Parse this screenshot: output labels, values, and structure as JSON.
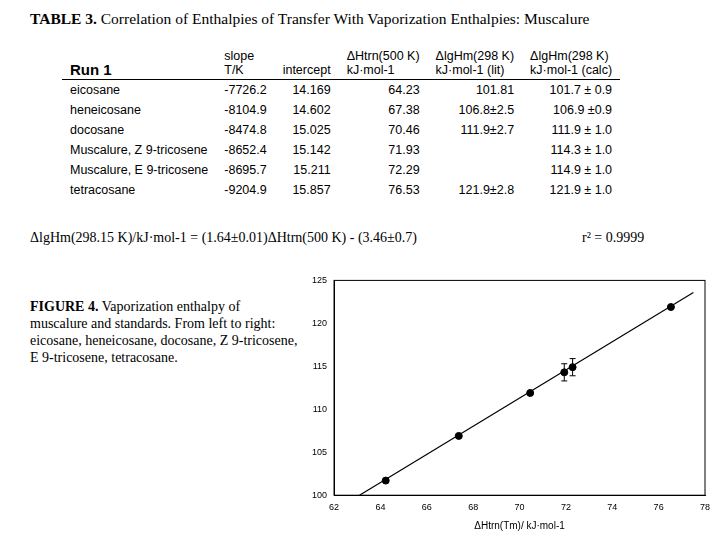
{
  "title": {
    "label": "TABLE 3.",
    "text": "Correlation of Enthalpies of Transfer With Vaporization Enthalpies: Muscalure"
  },
  "table": {
    "header": [
      [
        "Run 1"
      ],
      [
        "slope",
        "T/K"
      ],
      [
        "intercept"
      ],
      [
        "ΔHtrn(500 K)",
        "kJ·mol-1"
      ],
      [
        "ΔlgHm(298 K)",
        "kJ·mol-1 (lit)"
      ],
      [
        "ΔlgHm(298 K)",
        "kJ·mol-1 (calc)"
      ]
    ],
    "rows": [
      [
        "eicosane",
        "-7726.2",
        "14.169",
        "64.23",
        "101.81",
        "101.7 ± 0.9"
      ],
      [
        "heneicosane",
        "-8104.9",
        "14.602",
        "67.38",
        "106.8±2.5",
        "106.9 ±0.9"
      ],
      [
        "docosane",
        "-8474.8",
        "15.025",
        "70.46",
        "111.9±2.7",
        "111.9 ± 1.0"
      ],
      [
        "Muscalure, Z 9-tricosene",
        "-8652.4",
        "15.142",
        "71.93",
        null,
        "114.3 ± 1.0"
      ],
      [
        "Muscalure, E 9-tricosene",
        "-8695.7",
        "15.211",
        "72.29",
        null,
        "114.9 ± 1.0"
      ],
      [
        "tetracosane",
        "-9204.9",
        "15.857",
        "76.53",
        "121.9±2.8",
        "121.9 ± 1.0"
      ]
    ]
  },
  "equation": "ΔlgHm(298.15 K)/kJ·mol-1 = (1.64±0.01)ΔHtrn(500 K) - (3.46±0.7)",
  "r2": "r² = 0.9999",
  "figure_caption": {
    "label": "FIGURE 4.",
    "text": "Vaporization enthalpy of muscalure and standards. From left to right: eicosane, heneicosane, docosane, Z 9-tricosene, E 9-tricosene, tetracosane."
  },
  "chart_data": {
    "type": "scatter",
    "xlabel": "ΔHtrn(Tm)/ kJ·mol-1",
    "xlim": [
      62,
      78
    ],
    "xticks": [
      62,
      64,
      66,
      68,
      70,
      72,
      74,
      76,
      78
    ],
    "ylim": [
      100,
      125
    ],
    "yticks": [
      100,
      105,
      110,
      115,
      120,
      125
    ],
    "grid": false,
    "series": [
      {
        "type": "scatter",
        "marker": "circle",
        "color": "#000000",
        "x": [
          64.23,
          67.38,
          70.46,
          71.93,
          72.29,
          76.53
        ],
        "values": [
          101.7,
          106.9,
          111.9,
          114.3,
          114.9,
          121.9
        ],
        "errors": [
          null,
          null,
          null,
          1.0,
          1.0,
          null
        ]
      },
      {
        "type": "line",
        "line_style": "solid",
        "color": "#000000",
        "x": [
          63.1,
          77.5
        ],
        "values": [
          100.0,
          123.6
        ]
      }
    ]
  }
}
